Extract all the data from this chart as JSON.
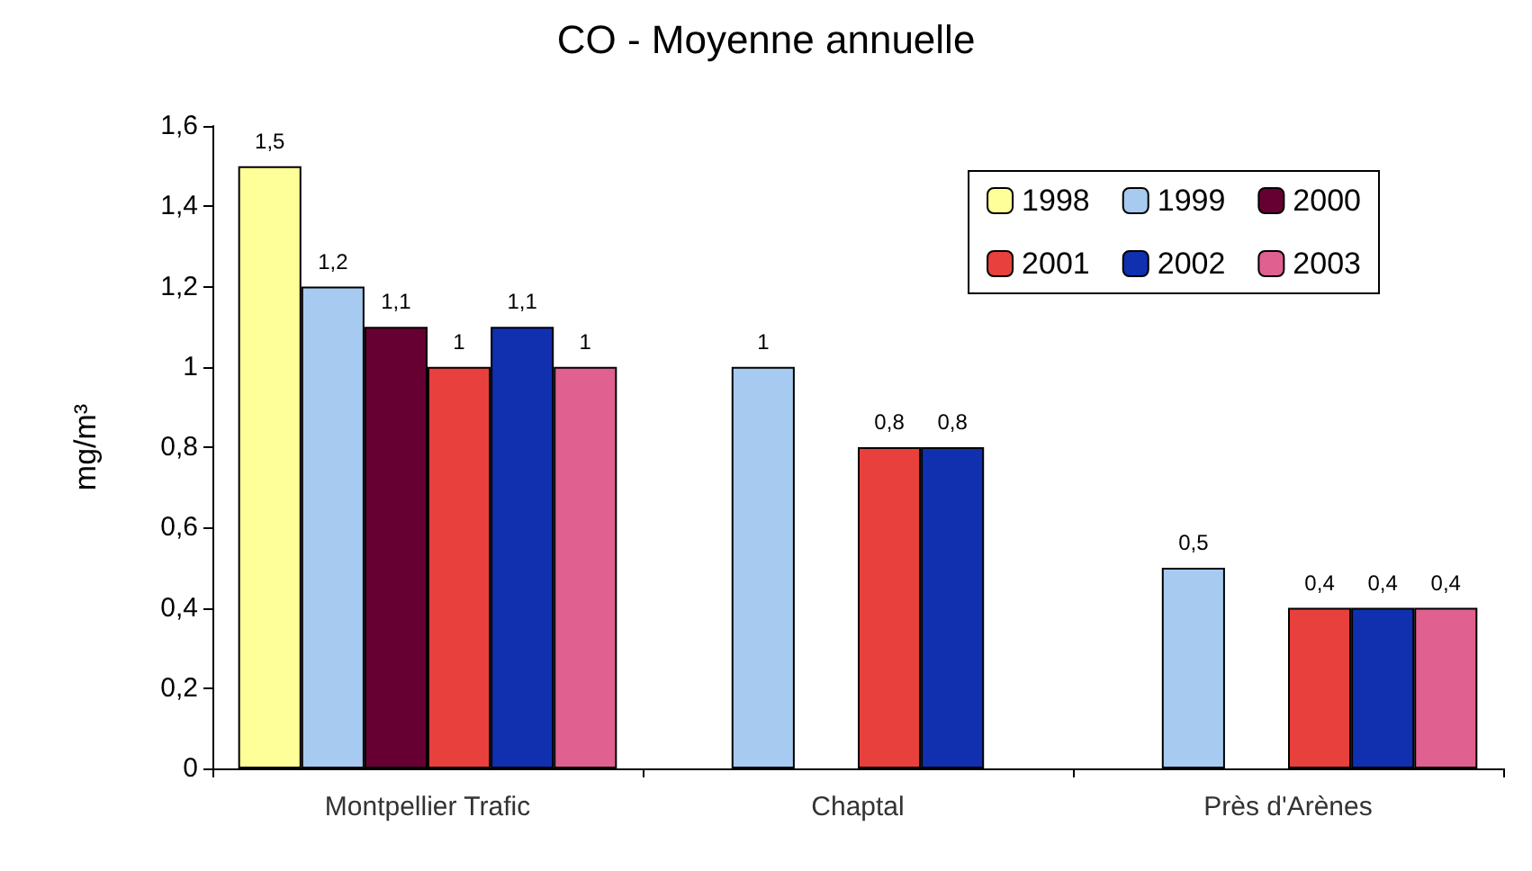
{
  "chart_data": {
    "type": "bar",
    "title": "CO - Moyenne annuelle",
    "ylabel": "mg/m³",
    "categories": [
      "Montpellier Trafic",
      "Chaptal",
      "Près d'Arènes"
    ],
    "series": [
      {
        "name": "1998",
        "color": "#ffff99",
        "values": [
          1.5,
          null,
          null
        ],
        "value_labels": [
          "1,5",
          null,
          null
        ]
      },
      {
        "name": "1999",
        "color": "#a6caf0",
        "values": [
          1.2,
          1,
          0.5
        ],
        "value_labels": [
          "1,2",
          "1",
          "0,5"
        ]
      },
      {
        "name": "2000",
        "color": "#660033",
        "values": [
          1.1,
          null,
          null
        ],
        "value_labels": [
          "1,1",
          null,
          null
        ]
      },
      {
        "name": "2001",
        "color": "#e8403c",
        "values": [
          1,
          0.8,
          0.4
        ],
        "value_labels": [
          "1",
          "0,8",
          "0,4"
        ]
      },
      {
        "name": "2002",
        "color": "#1030b0",
        "values": [
          1.1,
          0.8,
          0.4
        ],
        "value_labels": [
          "1,1",
          "0,8",
          "0,4"
        ]
      },
      {
        "name": "2003",
        "color": "#e06090",
        "values": [
          1,
          null,
          0.4
        ],
        "value_labels": [
          "1",
          null,
          "0,4"
        ]
      }
    ],
    "ylim": [
      0,
      1.6
    ],
    "yticks": [
      0,
      {
        "value": 0.2,
        "label": "0,2"
      },
      {
        "value": 0.4,
        "label": "0,4"
      },
      {
        "value": 0.6,
        "label": "0,6"
      },
      {
        "value": 0.8,
        "label": "0,8"
      },
      1,
      {
        "value": 1.2,
        "label": "1,2"
      },
      {
        "value": 1.4,
        "label": "1,4"
      },
      {
        "value": 1.6,
        "label": "1,6"
      }
    ],
    "grid": false,
    "legend": "top right"
  }
}
